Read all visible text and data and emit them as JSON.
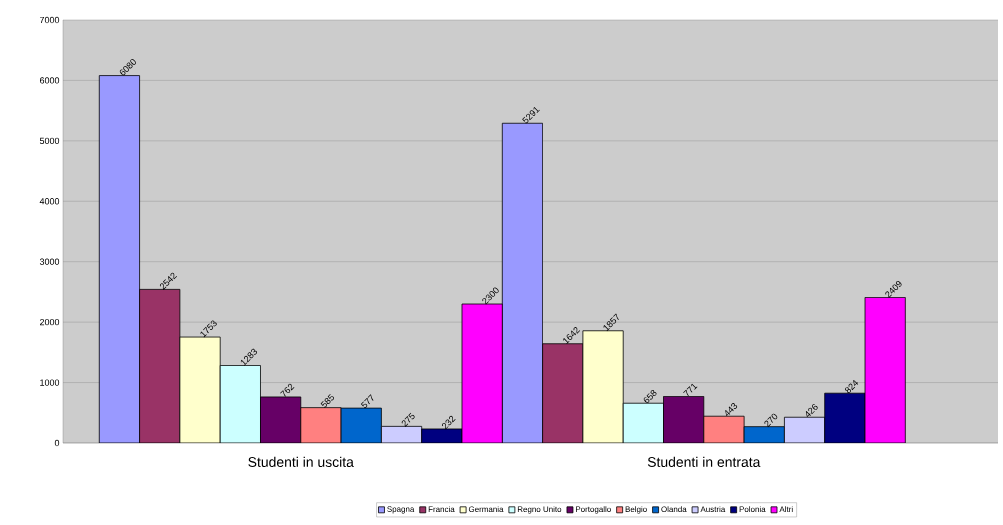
{
  "chart_data": {
    "type": "bar",
    "categories": [
      "Studenti in uscita",
      "Studenti in entrata"
    ],
    "series": [
      {
        "name": "Spagna",
        "color": "#9999ff",
        "values": [
          6080,
          5291
        ]
      },
      {
        "name": "Francia",
        "color": "#993366",
        "values": [
          2542,
          1642
        ]
      },
      {
        "name": "Germania",
        "color": "#ffffcc",
        "values": [
          1753,
          1857
        ]
      },
      {
        "name": "Regno Unito",
        "color": "#ccffff",
        "values": [
          1283,
          658
        ]
      },
      {
        "name": "Portogallo",
        "color": "#660066",
        "values": [
          762,
          771
        ]
      },
      {
        "name": "Belgio",
        "color": "#ff8080",
        "values": [
          585,
          443
        ]
      },
      {
        "name": "Olanda",
        "color": "#0066cc",
        "values": [
          577,
          270
        ]
      },
      {
        "name": "Austria",
        "color": "#ccccff",
        "values": [
          275,
          426
        ]
      },
      {
        "name": "Polonia",
        "color": "#000080",
        "values": [
          232,
          824
        ]
      },
      {
        "name": "Altri",
        "color": "#ff00ff",
        "values": [
          2300,
          2409
        ]
      }
    ],
    "ylim": [
      0,
      7000
    ],
    "yticks": [
      0,
      1000,
      2000,
      3000,
      4000,
      5000,
      6000,
      7000
    ],
    "grid": "y",
    "legend": "bottom",
    "data_labels": true
  }
}
